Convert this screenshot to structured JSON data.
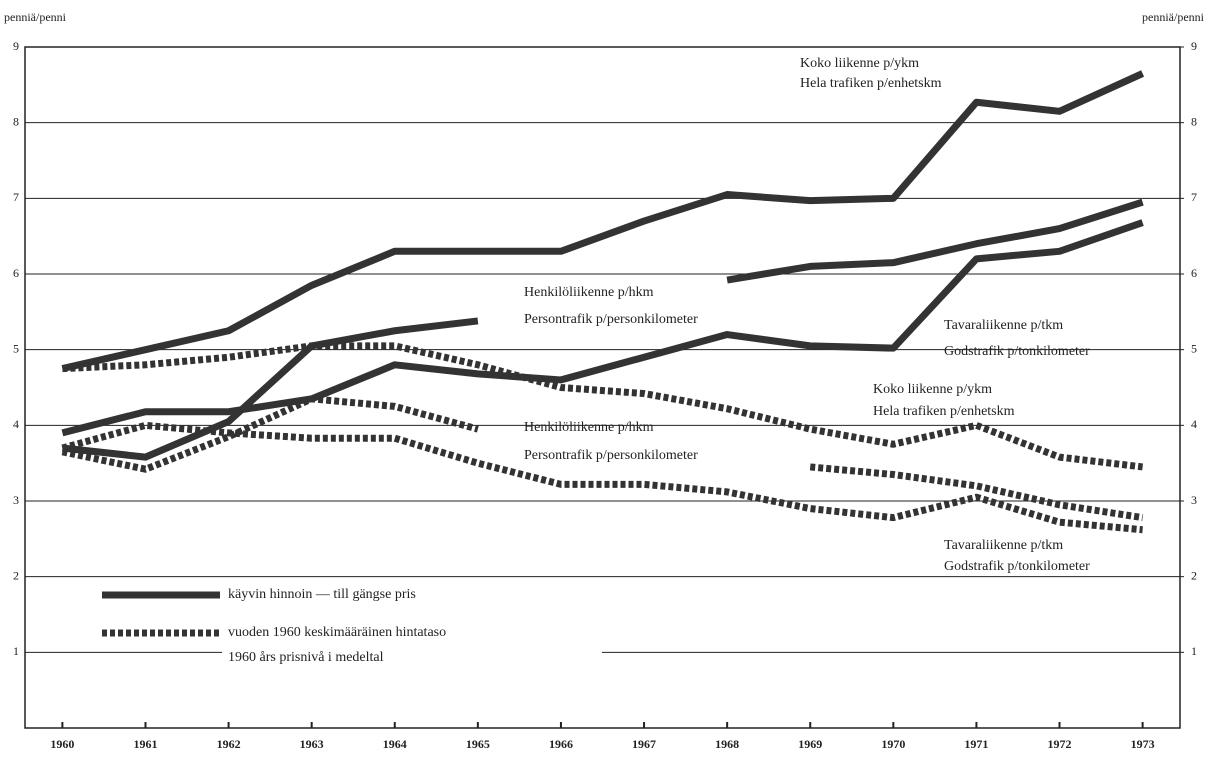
{
  "chart_data": {
    "type": "line",
    "y_label": "penniä/penni",
    "y2_label": "penniä/penni",
    "x": [
      1960,
      1961,
      1962,
      1963,
      1964,
      1965,
      1966,
      1967,
      1968,
      1969,
      1970,
      1971,
      1972,
      1973
    ],
    "xlim": [
      1959.55,
      1973.45
    ],
    "xticks": [
      1960,
      1961,
      1962,
      1963,
      1964,
      1965,
      1966,
      1967,
      1968,
      1969,
      1970,
      1971,
      1972,
      1973
    ],
    "ylim": [
      0,
      9
    ],
    "yticks": [
      1,
      2,
      3,
      4,
      5,
      6,
      7,
      8,
      9
    ],
    "y2lim": [
      0,
      9
    ],
    "y2ticks": [
      1,
      2,
      3,
      4,
      5,
      6,
      7,
      8,
      9
    ],
    "grid": true,
    "series": [
      {
        "style": "solid",
        "color": "#333333",
        "values": [
          4.75,
          5.0,
          5.25,
          5.85,
          6.3,
          6.3,
          6.3,
          6.7,
          7.05,
          6.97,
          7.0,
          8.27,
          8.15,
          8.65
        ]
      },
      {
        "style": "solid",
        "color": "#333333",
        "values": [
          3.7,
          3.58,
          4.05,
          5.05,
          5.25,
          5.38,
          null,
          null,
          5.92,
          6.1,
          6.15,
          6.4,
          6.6,
          6.95
        ]
      },
      {
        "style": "solid",
        "color": "#333333",
        "values": [
          3.9,
          4.18,
          4.18,
          4.35,
          4.8,
          4.68,
          4.6,
          4.9,
          5.2,
          5.05,
          5.02,
          6.2,
          6.3,
          6.68
        ]
      },
      {
        "style": "dotted",
        "color": "#333333",
        "values": [
          4.75,
          4.8,
          4.9,
          5.05,
          5.05,
          4.8,
          4.5,
          4.42,
          4.22,
          3.95,
          3.75,
          4.0,
          3.58,
          3.45
        ]
      },
      {
        "style": "dotted",
        "color": "#333333",
        "values": [
          3.65,
          3.42,
          3.85,
          4.35,
          4.25,
          3.95,
          null,
          null,
          null,
          3.45,
          3.35,
          3.2,
          2.95,
          2.78
        ]
      },
      {
        "style": "dotted",
        "color": "#333333",
        "values": [
          3.7,
          4.0,
          3.9,
          3.83,
          3.83,
          3.5,
          3.22,
          3.22,
          3.12,
          2.9,
          2.78,
          3.05,
          2.72,
          2.62
        ]
      }
    ],
    "annotations": [
      "Koko liikenne p/ykm",
      "Hela trafiken p/enhetskm",
      "Henkilöliikenne p/hkm",
      "Persontrafik p/personkilometer",
      "Tavaraliikenne p/tkm",
      "Godstrafik p/tonkilometer",
      "Koko liikenne p/ykm",
      "Hela trafiken p/enhetskm",
      "Henkilöliikenne p/hkm",
      "Persontrafik p/personkilometer",
      "Tavaraliikenne p/tkm",
      "Godstrafik p/tonkilometer"
    ],
    "legend": [
      {
        "label": "käyvin hinnoin — till gängse pris",
        "style": "solid"
      },
      {
        "label": "vuoden 1960 keskimääräinen hintataso",
        "style": "dotted"
      },
      {
        "label": "1960 års prisnivå i medeltal",
        "style": null
      }
    ]
  }
}
